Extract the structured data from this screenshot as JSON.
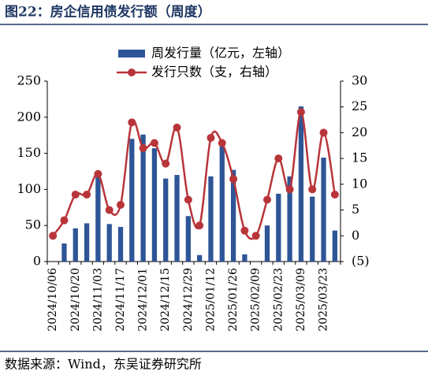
{
  "chart_data": {
    "type": "bar_line",
    "title": "图22：房企信用债发行额（周度）",
    "source": "数据来源：Wind，东吴证券研究所",
    "categories": [
      "2024/10/06",
      null,
      "2024/10/20",
      null,
      "2024/11/03",
      null,
      "2024/11/17",
      null,
      "2024/12/01",
      null,
      "2024/12/15",
      null,
      "2024/12/29",
      null,
      "2025/01/12",
      null,
      "2025/01/26",
      null,
      "2025/02/09",
      null,
      "2025/02/23",
      null,
      "2025/03/09",
      null,
      "2025/03/23",
      null
    ],
    "series": [
      {
        "name": "周发行量（亿元，左轴）",
        "type": "bar",
        "color": "#2e5596",
        "values": [
          0,
          25,
          46,
          53,
          120,
          52,
          48,
          170,
          176,
          157,
          115,
          120,
          63,
          9,
          118,
          160,
          127,
          10,
          0,
          50,
          94,
          118,
          215,
          90,
          144,
          43
        ]
      },
      {
        "name": "发行只数（支，右轴）",
        "type": "line",
        "axis": "y2",
        "color": "#b8353a",
        "values": [
          0,
          3,
          8,
          8,
          12,
          5,
          6,
          22,
          17,
          18,
          14,
          21,
          7,
          2,
          19,
          18,
          11,
          1,
          0,
          7,
          15,
          9,
          24,
          9,
          20,
          8
        ]
      }
    ],
    "ylim": [
      0,
      250
    ],
    "yticks": [
      0,
      50,
      100,
      150,
      200,
      250
    ],
    "y2lim": [
      -5,
      30
    ],
    "y2ticks": [
      {
        "value": -5,
        "label": "(5)"
      },
      0,
      5,
      10,
      15,
      20,
      25,
      30
    ],
    "negative_tick_color": "#e00000",
    "grid": false
  }
}
